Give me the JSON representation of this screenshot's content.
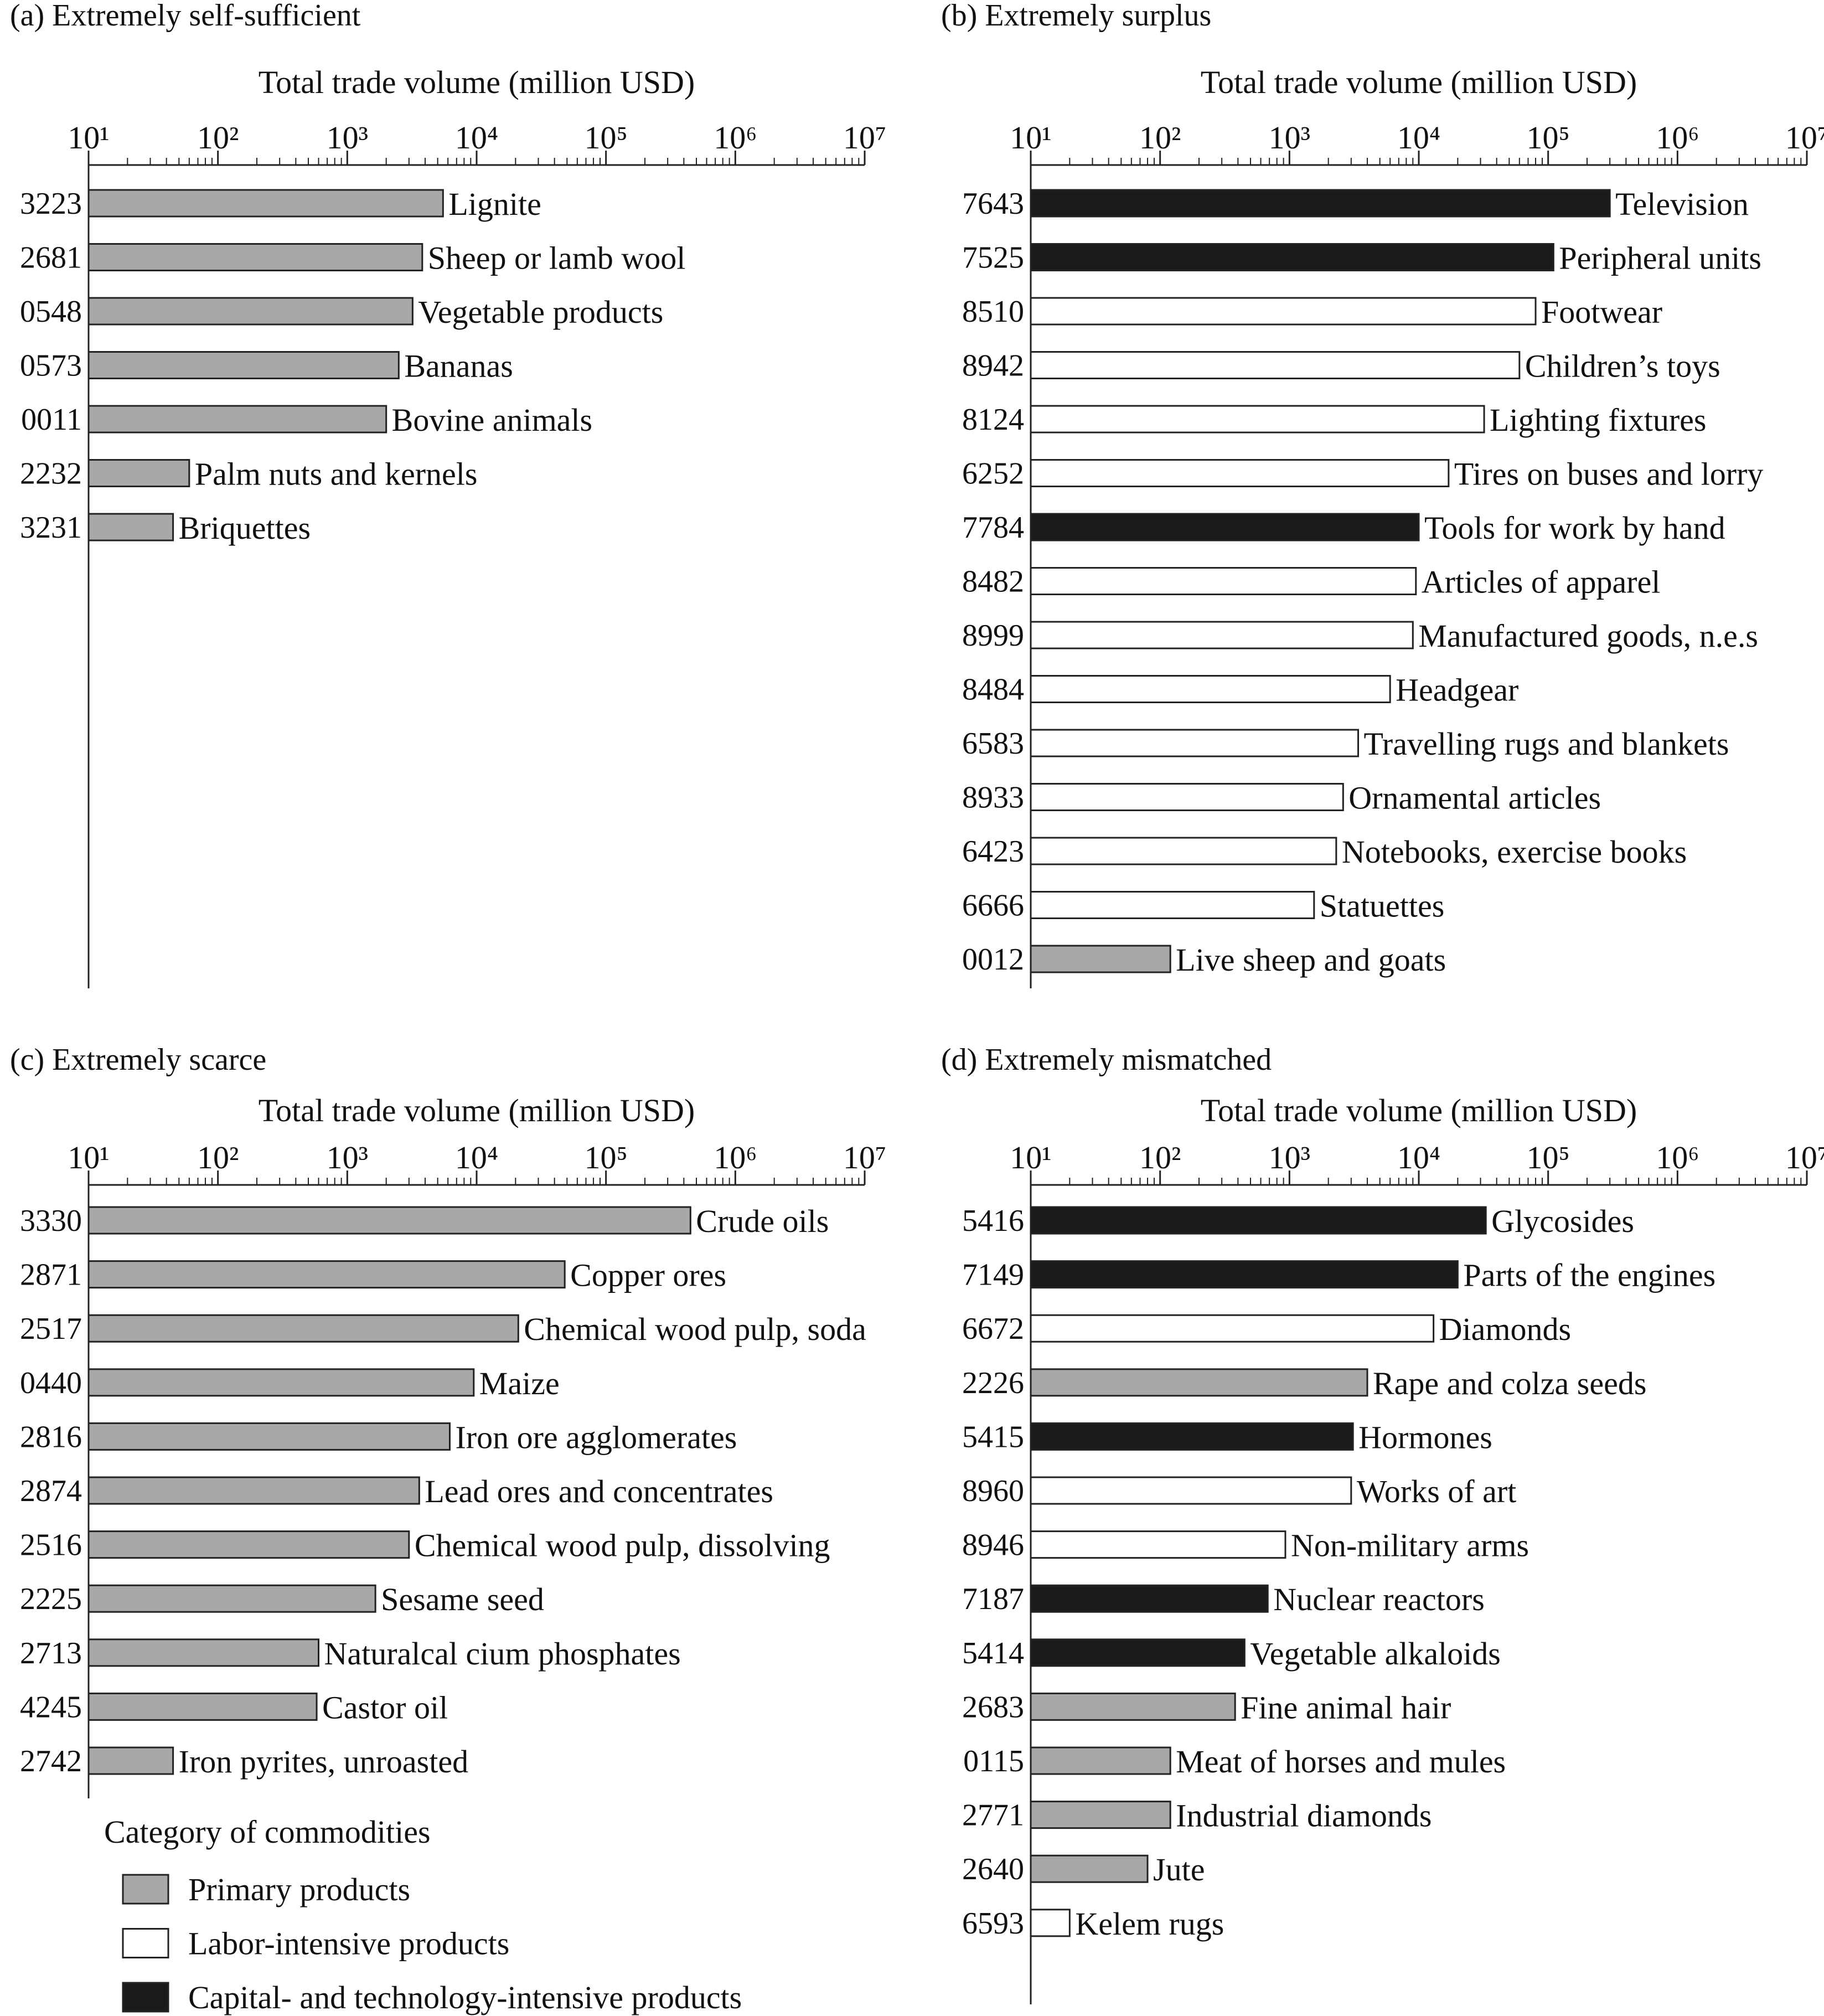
{
  "colors": {
    "primary": "#a8a8a8",
    "labor": "#ffffff",
    "capital": "#1a1a1a",
    "stroke": "#222222"
  },
  "chart_data": [
    {
      "type": "bar",
      "orientation": "horizontal",
      "title": "(a) Extremely self-sufficient",
      "xlabel": "Total trade volume (million USD)",
      "xscale": "log",
      "xlim": [
        10,
        10000000
      ],
      "tick_labels": [
        "10¹",
        "10²",
        "10³",
        "10⁴",
        "10⁵",
        "10⁶",
        "10⁷"
      ],
      "categories": [
        "3223",
        "2681",
        "0548",
        "0573",
        "0011",
        "2232",
        "3231"
      ],
      "labels": [
        "Lignite",
        "Sheep or lamb wool",
        "Vegetable products",
        "Bananas",
        "Bovine animals",
        "Palm nuts and kernels",
        "Briquettes"
      ],
      "values": [
        5500,
        3800,
        3200,
        2500,
        2000,
        60,
        45
      ],
      "product_category": [
        "primary",
        "primary",
        "primary",
        "primary",
        "primary",
        "primary",
        "primary"
      ]
    },
    {
      "type": "bar",
      "orientation": "horizontal",
      "title": "(b) Extremely surplus",
      "xlabel": "Total trade volume (million USD)",
      "xscale": "log",
      "xlim": [
        10,
        10000000
      ],
      "tick_labels": [
        "10¹",
        "10²",
        "10³",
        "10⁴",
        "10⁵",
        "10⁶",
        "10⁷"
      ],
      "categories": [
        "7643",
        "7525",
        "8510",
        "8942",
        "8124",
        "6252",
        "7784",
        "8482",
        "8999",
        "8484",
        "6583",
        "8933",
        "6423",
        "6666",
        "0012"
      ],
      "labels": [
        "Television",
        "Peripheral units",
        "Footwear",
        "Children’s toys",
        "Lighting fixtures",
        "Tires on buses and lorry",
        "Tools for work by hand",
        "Articles of apparel",
        "Manufactured goods, n.e.s",
        "Headgear",
        "Travelling rugs and blankets",
        "Ornamental articles",
        "Notebooks, exercise books",
        "Statuettes",
        "Live sheep and goats"
      ],
      "values": [
        300000,
        110000,
        80000,
        60000,
        32000,
        17000,
        10000,
        9500,
        9000,
        6000,
        3400,
        2600,
        2300,
        1550,
        120
      ],
      "product_category": [
        "capital",
        "capital",
        "labor",
        "labor",
        "labor",
        "labor",
        "capital",
        "labor",
        "labor",
        "labor",
        "labor",
        "labor",
        "labor",
        "labor",
        "primary"
      ]
    },
    {
      "type": "bar",
      "orientation": "horizontal",
      "title": "(c) Extremely scarce",
      "xlabel": "Total trade volume (million USD)",
      "xscale": "log",
      "xlim": [
        10,
        10000000
      ],
      "tick_labels": [
        "10¹",
        "10²",
        "10³",
        "10⁴",
        "10⁵",
        "10⁶",
        "10⁷"
      ],
      "categories": [
        "3330",
        "2871",
        "2517",
        "0440",
        "2816",
        "2874",
        "2516",
        "2225",
        "2713",
        "4245",
        "2742"
      ],
      "labels": [
        "Crude oils",
        "Copper ores",
        "Chemical wood pulp, soda",
        "Maize",
        "Iron ore agglomerates",
        "Lead ores and concentrates",
        "Chemical wood pulp, dissolving",
        "Sesame seed",
        "Naturalcal cium phosphates",
        "Castor oil",
        "Iron pyrites, unroasted"
      ],
      "values": [
        450000,
        48000,
        21000,
        9500,
        6200,
        3600,
        3000,
        1650,
        600,
        580,
        45
      ],
      "product_category": [
        "primary",
        "primary",
        "primary",
        "primary",
        "primary",
        "primary",
        "primary",
        "primary",
        "primary",
        "primary",
        "primary"
      ]
    },
    {
      "type": "bar",
      "orientation": "horizontal",
      "title": "(d) Extremely mismatched",
      "xlabel": "Total trade volume (million USD)",
      "xscale": "log",
      "xlim": [
        10,
        10000000
      ],
      "tick_labels": [
        "10¹",
        "10²",
        "10³",
        "10⁴",
        "10⁵",
        "10⁶",
        "10⁷"
      ],
      "categories": [
        "5416",
        "7149",
        "6672",
        "2226",
        "5415",
        "8960",
        "8946",
        "7187",
        "5414",
        "2683",
        "0115",
        "2771",
        "2640",
        "6593"
      ],
      "labels": [
        "Glycosides",
        "Parts of the engines",
        "Diamonds",
        "Rape and colza seeds",
        "Hormones",
        "Works of art",
        "Non-military arms",
        "Nuclear reactors",
        "Vegetable alkaloids",
        "Fine animal hair",
        "Meat of horses and mules",
        "Industrial diamonds",
        "Jute",
        "Kelem rugs"
      ],
      "values": [
        33000,
        20000,
        13000,
        4000,
        3100,
        3000,
        930,
        680,
        450,
        380,
        120,
        120,
        80,
        20
      ],
      "product_category": [
        "capital",
        "capital",
        "labor",
        "primary",
        "capital",
        "labor",
        "labor",
        "capital",
        "capital",
        "primary",
        "primary",
        "primary",
        "primary",
        "labor"
      ]
    }
  ],
  "legend": {
    "title": "Category of commodities",
    "items": [
      {
        "key": "primary",
        "label": "Primary products"
      },
      {
        "key": "labor",
        "label": "Labor-intensive products"
      },
      {
        "key": "capital",
        "label": "Capital- and technology-intensive products"
      }
    ]
  }
}
